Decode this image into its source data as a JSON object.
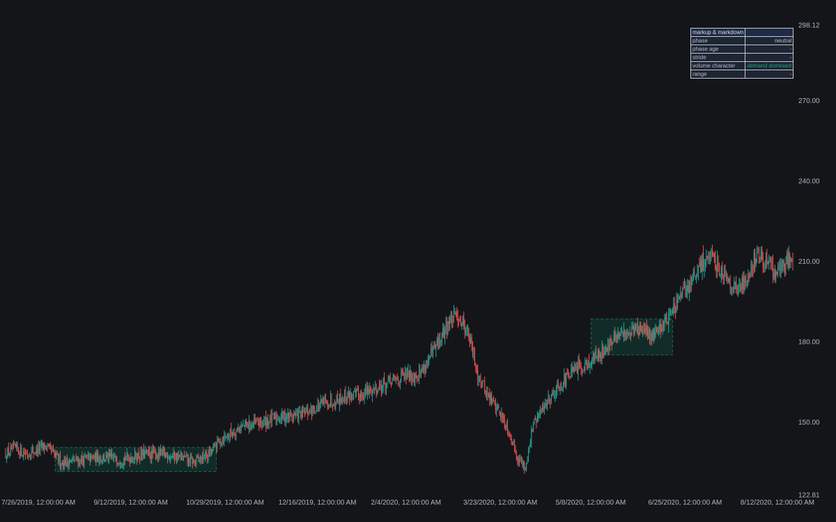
{
  "colors": {
    "background": "#141519",
    "up": "#26a69a",
    "down": "#ef5350",
    "zone_fill": "#10302b",
    "zone_border": "#1d6b57",
    "axis_text": "#b2b5be",
    "accent": "#1ea37f"
  },
  "table": {
    "title": "markup & markdown",
    "title_value": "",
    "rows": [
      {
        "key": "phase",
        "value": "neutral"
      },
      {
        "key": "phase age",
        "value": "-"
      },
      {
        "key": "stride",
        "value": "-"
      },
      {
        "key": "volume character",
        "value": "demand dominant",
        "accent": true
      },
      {
        "key": "range",
        "value": "-"
      }
    ]
  },
  "chart_data": {
    "type": "candlestick",
    "price_axis": {
      "min": 122.81,
      "max": 298.12,
      "labels": [
        "298.12",
        "270.00",
        "240.00",
        "210.00",
        "180.00",
        "150.00",
        "122.81"
      ]
    },
    "time_axis": {
      "labels": [
        "7/26/2019, 12:00:00 AM",
        "9/12/2019, 12:00:00 AM",
        "10/29/2019, 12:00:00 AM",
        "12/16/2019, 12:00:00 AM",
        "2/4/2020, 12:00:00 AM",
        "3/23/2020, 12:00:00 AM",
        "5/8/2020, 12:00:00 AM",
        "6/25/2020, 12:00:00 AM",
        "8/12/2020, 12:00:00 AM"
      ]
    },
    "series": [
      {
        "kind": "close_path",
        "points": [
          [
            0,
            138
          ],
          [
            10,
            140
          ],
          [
            22,
            138
          ],
          [
            40,
            141
          ],
          [
            56,
            135
          ],
          [
            80,
            136
          ],
          [
            95,
            137
          ],
          [
            115,
            136
          ],
          [
            140,
            138
          ],
          [
            160,
            138
          ],
          [
            175,
            137
          ],
          [
            189,
            135
          ],
          [
            205,
            138
          ],
          [
            215,
            143
          ],
          [
            235,
            148
          ],
          [
            260,
            150
          ],
          [
            276,
            152
          ],
          [
            300,
            153
          ],
          [
            320,
            157
          ],
          [
            345,
            160
          ],
          [
            356,
            160
          ],
          [
            375,
            163
          ],
          [
            400,
            167
          ],
          [
            416,
            168
          ],
          [
            420,
            170
          ],
          [
            438,
            181
          ],
          [
            445,
            187
          ],
          [
            455,
            190
          ],
          [
            465,
            184
          ],
          [
            475,
            168
          ],
          [
            485,
            160
          ],
          [
            495,
            155
          ],
          [
            505,
            148
          ],
          [
            515,
            137
          ],
          [
            523,
            133
          ],
          [
            530,
            148
          ],
          [
            545,
            158
          ],
          [
            560,
            165
          ],
          [
            575,
            170
          ],
          [
            590,
            173
          ],
          [
            605,
            178
          ],
          [
            620,
            183
          ],
          [
            635,
            185
          ],
          [
            648,
            182
          ],
          [
            660,
            186
          ],
          [
            670,
            191
          ],
          [
            682,
            198
          ],
          [
            695,
            205
          ],
          [
            705,
            212
          ],
          [
            715,
            209
          ],
          [
            725,
            205
          ],
          [
            735,
            199
          ],
          [
            745,
            203
          ],
          [
            755,
            212
          ],
          [
            765,
            210
          ],
          [
            775,
            205
          ],
          [
            785,
            210
          ],
          [
            792,
            212
          ]
        ]
      }
    ],
    "zones": [
      {
        "x_start": 50,
        "x_end": 212,
        "y_low": 131.5,
        "y_high": 140.5
      },
      {
        "x_start": 589,
        "x_end": 671,
        "y_low": 175,
        "y_high": 188.5
      }
    ]
  }
}
